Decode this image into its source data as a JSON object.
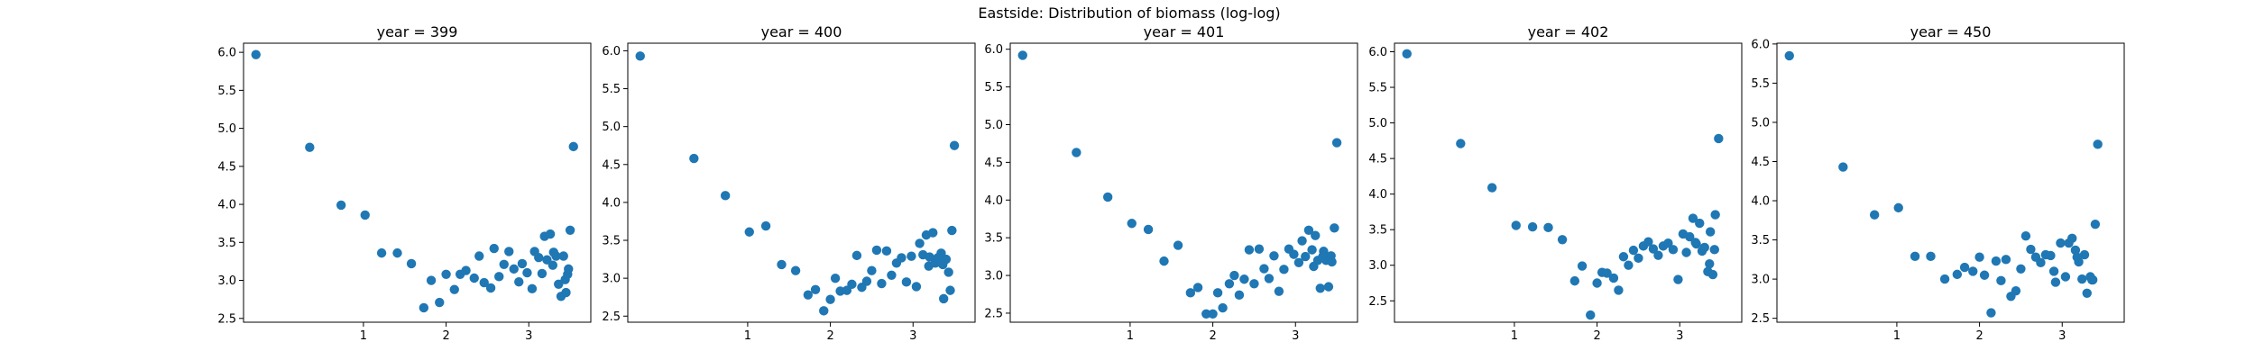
{
  "figure_title": "Eastside: Distribution of biomass (log-log)",
  "chart_data": [
    {
      "type": "scatter",
      "title": "year = 399",
      "xlabel": "",
      "ylabel": "",
      "xlim": [
        -0.45,
        3.75
      ],
      "ylim": [
        2.45,
        6.12
      ],
      "xticks": [
        1,
        2,
        3
      ],
      "xtick_labels": [
        "1",
        "2",
        "3"
      ],
      "yticks": [
        2.5,
        3.0,
        3.5,
        4.0,
        4.5,
        5.0,
        5.5,
        6.0
      ],
      "ytick_labels": [
        "2.5",
        "3.0",
        "3.5",
        "4.0",
        "4.5",
        "5.0",
        "5.5",
        "6.0"
      ],
      "grid": false,
      "color": "#1f77b4",
      "points": [
        [
          -0.3,
          5.97
        ],
        [
          0.35,
          4.75
        ],
        [
          0.73,
          3.99
        ],
        [
          1.02,
          3.86
        ],
        [
          1.22,
          3.36
        ],
        [
          1.41,
          3.36
        ],
        [
          1.58,
          3.22
        ],
        [
          1.73,
          2.64
        ],
        [
          1.82,
          3.0
        ],
        [
          1.92,
          2.71
        ],
        [
          2.0,
          3.08
        ],
        [
          2.1,
          2.88
        ],
        [
          2.17,
          3.08
        ],
        [
          2.24,
          3.13
        ],
        [
          2.34,
          3.03
        ],
        [
          2.4,
          3.32
        ],
        [
          2.46,
          2.97
        ],
        [
          2.54,
          2.9
        ],
        [
          2.58,
          3.42
        ],
        [
          2.64,
          3.05
        ],
        [
          2.7,
          3.21
        ],
        [
          2.76,
          3.38
        ],
        [
          2.82,
          3.15
        ],
        [
          2.88,
          2.98
        ],
        [
          2.92,
          3.22
        ],
        [
          2.98,
          3.1
        ],
        [
          3.04,
          2.89
        ],
        [
          3.07,
          3.38
        ],
        [
          3.12,
          3.3
        ],
        [
          3.16,
          3.09
        ],
        [
          3.19,
          3.58
        ],
        [
          3.22,
          3.27
        ],
        [
          3.26,
          3.61
        ],
        [
          3.29,
          3.2
        ],
        [
          3.33,
          3.32
        ],
        [
          3.36,
          2.95
        ],
        [
          3.39,
          2.79
        ],
        [
          3.42,
          3.32
        ],
        [
          3.45,
          2.84
        ],
        [
          3.47,
          3.08
        ],
        [
          3.5,
          3.66
        ],
        [
          3.54,
          4.76
        ],
        [
          3.3,
          3.37
        ],
        [
          3.44,
          3.01
        ],
        [
          3.48,
          3.15
        ]
      ]
    },
    {
      "type": "scatter",
      "title": "year = 400",
      "xlabel": "",
      "ylabel": "",
      "xlim": [
        -0.45,
        3.75
      ],
      "ylim": [
        2.42,
        6.1
      ],
      "xticks": [
        1,
        2,
        3
      ],
      "xtick_labels": [
        "1",
        "2",
        "3"
      ],
      "yticks": [
        2.5,
        3.0,
        3.5,
        4.0,
        4.5,
        5.0,
        5.5,
        6.0
      ],
      "ytick_labels": [
        "2.5",
        "3.0",
        "3.5",
        "4.0",
        "4.5",
        "5.0",
        "5.5",
        "6.0"
      ],
      "grid": false,
      "color": "#1f77b4",
      "points": [
        [
          -0.3,
          5.93
        ],
        [
          0.35,
          4.58
        ],
        [
          0.73,
          4.09
        ],
        [
          1.02,
          3.61
        ],
        [
          1.22,
          3.69
        ],
        [
          1.41,
          3.18
        ],
        [
          1.58,
          3.1
        ],
        [
          1.73,
          2.78
        ],
        [
          1.82,
          2.85
        ],
        [
          1.92,
          2.57
        ],
        [
          2.0,
          2.72
        ],
        [
          2.06,
          3.0
        ],
        [
          2.12,
          2.83
        ],
        [
          2.2,
          2.84
        ],
        [
          2.26,
          2.92
        ],
        [
          2.32,
          3.3
        ],
        [
          2.38,
          2.88
        ],
        [
          2.44,
          2.96
        ],
        [
          2.5,
          3.1
        ],
        [
          2.56,
          3.37
        ],
        [
          2.62,
          2.93
        ],
        [
          2.68,
          3.36
        ],
        [
          2.74,
          3.04
        ],
        [
          2.8,
          3.2
        ],
        [
          2.86,
          3.27
        ],
        [
          2.92,
          2.95
        ],
        [
          2.98,
          3.29
        ],
        [
          3.04,
          2.89
        ],
        [
          3.08,
          3.46
        ],
        [
          3.12,
          3.31
        ],
        [
          3.16,
          3.57
        ],
        [
          3.2,
          3.28
        ],
        [
          3.24,
          3.6
        ],
        [
          3.27,
          3.2
        ],
        [
          3.3,
          3.27
        ],
        [
          3.34,
          3.33
        ],
        [
          3.37,
          2.73
        ],
        [
          3.4,
          3.25
        ],
        [
          3.43,
          3.08
        ],
        [
          3.47,
          3.63
        ],
        [
          3.5,
          4.75
        ],
        [
          3.45,
          2.84
        ],
        [
          3.19,
          3.16
        ],
        [
          3.36,
          3.18
        ]
      ]
    },
    {
      "type": "scatter",
      "title": "year = 401",
      "xlabel": "",
      "ylabel": "",
      "xlim": [
        -0.45,
        3.75
      ],
      "ylim": [
        2.38,
        6.08
      ],
      "xticks": [
        1,
        2,
        3
      ],
      "xtick_labels": [
        "1",
        "2",
        "3"
      ],
      "yticks": [
        2.5,
        3.0,
        3.5,
        4.0,
        4.5,
        5.0,
        5.5,
        6.0
      ],
      "ytick_labels": [
        "2.5",
        "3.0",
        "3.5",
        "4.0",
        "4.5",
        "5.0",
        "5.5",
        "6.0"
      ],
      "grid": false,
      "color": "#1f77b4",
      "points": [
        [
          -0.3,
          5.92
        ],
        [
          0.35,
          4.63
        ],
        [
          0.73,
          4.04
        ],
        [
          1.02,
          3.69
        ],
        [
          1.22,
          3.61
        ],
        [
          1.41,
          3.19
        ],
        [
          1.58,
          3.4
        ],
        [
          1.73,
          2.77
        ],
        [
          1.82,
          2.84
        ],
        [
          1.92,
          2.49
        ],
        [
          2.0,
          2.49
        ],
        [
          2.06,
          2.77
        ],
        [
          2.12,
          2.57
        ],
        [
          2.2,
          2.89
        ],
        [
          2.26,
          3.0
        ],
        [
          2.32,
          2.74
        ],
        [
          2.38,
          2.95
        ],
        [
          2.44,
          3.34
        ],
        [
          2.5,
          2.89
        ],
        [
          2.56,
          3.35
        ],
        [
          2.62,
          3.09
        ],
        [
          2.68,
          2.96
        ],
        [
          2.74,
          3.26
        ],
        [
          2.8,
          2.79
        ],
        [
          2.86,
          3.08
        ],
        [
          2.92,
          3.35
        ],
        [
          2.98,
          3.28
        ],
        [
          3.04,
          3.17
        ],
        [
          3.08,
          3.46
        ],
        [
          3.12,
          3.25
        ],
        [
          3.16,
          3.6
        ],
        [
          3.2,
          3.34
        ],
        [
          3.24,
          3.53
        ],
        [
          3.27,
          3.2
        ],
        [
          3.3,
          2.83
        ],
        [
          3.34,
          3.32
        ],
        [
          3.37,
          3.2
        ],
        [
          3.4,
          2.85
        ],
        [
          3.43,
          3.26
        ],
        [
          3.47,
          3.63
        ],
        [
          3.5,
          4.76
        ],
        [
          3.44,
          3.18
        ],
        [
          3.22,
          3.12
        ],
        [
          3.33,
          3.25
        ]
      ]
    },
    {
      "type": "scatter",
      "title": "year = 402",
      "xlabel": "",
      "ylabel": "",
      "xlim": [
        -0.45,
        3.75
      ],
      "ylim": [
        2.2,
        6.12
      ],
      "xticks": [
        1,
        2,
        3
      ],
      "xtick_labels": [
        "1",
        "2",
        "3"
      ],
      "yticks": [
        2.5,
        3.0,
        3.5,
        4.0,
        4.5,
        5.0,
        5.5,
        6.0
      ],
      "ytick_labels": [
        "2.5",
        "3.0",
        "3.5",
        "4.0",
        "4.5",
        "5.0",
        "5.5",
        "6.0"
      ],
      "grid": false,
      "color": "#1f77b4",
      "points": [
        [
          -0.3,
          5.97
        ],
        [
          0.35,
          4.71
        ],
        [
          0.73,
          4.09
        ],
        [
          1.02,
          3.56
        ],
        [
          1.22,
          3.54
        ],
        [
          1.41,
          3.53
        ],
        [
          1.58,
          3.36
        ],
        [
          1.73,
          2.78
        ],
        [
          1.82,
          2.99
        ],
        [
          1.92,
          2.3
        ],
        [
          2.0,
          2.75
        ],
        [
          2.06,
          2.9
        ],
        [
          2.12,
          2.89
        ],
        [
          2.2,
          2.82
        ],
        [
          2.26,
          2.65
        ],
        [
          2.32,
          3.12
        ],
        [
          2.38,
          3.0
        ],
        [
          2.44,
          3.21
        ],
        [
          2.5,
          3.1
        ],
        [
          2.56,
          3.27
        ],
        [
          2.62,
          3.33
        ],
        [
          2.68,
          3.23
        ],
        [
          2.74,
          3.14
        ],
        [
          2.8,
          3.27
        ],
        [
          2.86,
          3.31
        ],
        [
          2.92,
          3.22
        ],
        [
          2.98,
          2.8
        ],
        [
          3.04,
          3.44
        ],
        [
          3.08,
          3.18
        ],
        [
          3.12,
          3.4
        ],
        [
          3.16,
          3.66
        ],
        [
          3.2,
          3.3
        ],
        [
          3.24,
          3.59
        ],
        [
          3.27,
          3.2
        ],
        [
          3.3,
          3.25
        ],
        [
          3.34,
          2.91
        ],
        [
          3.37,
          3.47
        ],
        [
          3.4,
          2.87
        ],
        [
          3.43,
          3.71
        ],
        [
          3.47,
          4.78
        ],
        [
          3.36,
          3.02
        ],
        [
          3.19,
          3.32
        ],
        [
          3.42,
          3.22
        ]
      ]
    },
    {
      "type": "scatter",
      "title": "year = 450",
      "xlabel": "",
      "ylabel": "",
      "xlim": [
        -0.45,
        3.75
      ],
      "ylim": [
        2.45,
        6.01
      ],
      "xticks": [
        1,
        2,
        3
      ],
      "xtick_labels": [
        "1",
        "2",
        "3"
      ],
      "yticks": [
        2.5,
        3.0,
        3.5,
        4.0,
        4.5,
        5.0,
        5.5,
        6.0
      ],
      "ytick_labels": [
        "2.5",
        "3.0",
        "3.5",
        "4.0",
        "4.5",
        "5.0",
        "5.5",
        "6.0"
      ],
      "grid": false,
      "color": "#1f77b4",
      "points": [
        [
          -0.3,
          5.85
        ],
        [
          0.35,
          4.43
        ],
        [
          0.73,
          3.82
        ],
        [
          1.02,
          3.91
        ],
        [
          1.22,
          3.29
        ],
        [
          1.41,
          3.29
        ],
        [
          1.58,
          3.0
        ],
        [
          1.73,
          3.06
        ],
        [
          1.82,
          3.15
        ],
        [
          1.92,
          3.1
        ],
        [
          2.0,
          3.28
        ],
        [
          2.06,
          3.05
        ],
        [
          2.14,
          2.57
        ],
        [
          2.2,
          3.23
        ],
        [
          2.26,
          2.98
        ],
        [
          2.32,
          3.25
        ],
        [
          2.38,
          2.78
        ],
        [
          2.44,
          2.85
        ],
        [
          2.5,
          3.13
        ],
        [
          2.56,
          3.55
        ],
        [
          2.62,
          3.38
        ],
        [
          2.68,
          3.28
        ],
        [
          2.74,
          3.21
        ],
        [
          2.8,
          3.31
        ],
        [
          2.86,
          3.3
        ],
        [
          2.92,
          2.96
        ],
        [
          2.98,
          3.46
        ],
        [
          3.04,
          3.03
        ],
        [
          3.08,
          3.46
        ],
        [
          3.12,
          3.52
        ],
        [
          3.16,
          3.37
        ],
        [
          3.2,
          3.22
        ],
        [
          3.24,
          3.0
        ],
        [
          3.27,
          3.31
        ],
        [
          3.3,
          2.82
        ],
        [
          3.34,
          3.03
        ],
        [
          3.37,
          2.99
        ],
        [
          3.4,
          3.7
        ],
        [
          3.43,
          4.72
        ],
        [
          3.18,
          3.28
        ],
        [
          3.36,
          2.99
        ],
        [
          2.9,
          3.1
        ]
      ]
    }
  ]
}
